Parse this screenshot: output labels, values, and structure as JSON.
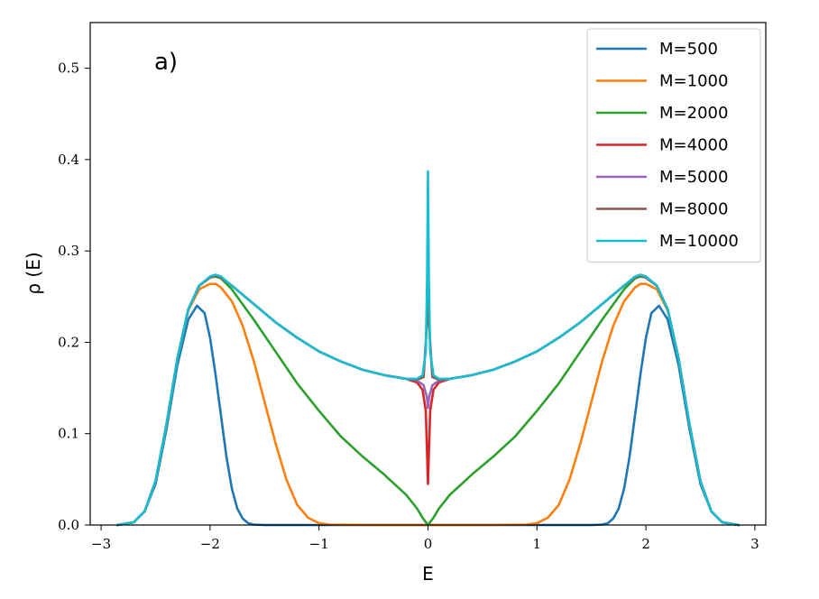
{
  "chart_data": {
    "type": "line",
    "title": "",
    "xlabel": "E",
    "ylabel": "ρ (E)",
    "annotation": "a)",
    "xlim": [
      -3.1,
      3.1
    ],
    "ylim": [
      0.0,
      0.55
    ],
    "xticks": [
      -3,
      -2,
      -1,
      0,
      1,
      2,
      3
    ],
    "xtick_labels": [
      "−3",
      "−2",
      "−1",
      "0",
      "1",
      "2",
      "3"
    ],
    "yticks": [
      0.0,
      0.1,
      0.2,
      0.3,
      0.4,
      0.5
    ],
    "ytick_labels": [
      "0.0",
      "0.1",
      "0.2",
      "0.3",
      "0.4",
      "0.5"
    ],
    "grid": false,
    "legend_position": "top-right",
    "series": [
      {
        "name": "M=500",
        "color": "#1f77b4",
        "x": [
          -2.85,
          -2.7,
          -2.6,
          -2.5,
          -2.4,
          -2.3,
          -2.2,
          -2.12,
          -2.05,
          -2.0,
          -1.95,
          -1.9,
          -1.85,
          -1.8,
          -1.75,
          -1.7,
          -1.65,
          -1.6,
          -1.5,
          -1.0,
          0.0,
          1.0,
          1.5,
          1.6,
          1.65,
          1.7,
          1.75,
          1.8,
          1.85,
          1.9,
          1.95,
          2.0,
          2.05,
          2.12,
          2.2,
          2.3,
          2.4,
          2.5,
          2.6,
          2.7,
          2.85
        ],
        "y": [
          0.0,
          0.003,
          0.015,
          0.045,
          0.105,
          0.175,
          0.225,
          0.24,
          0.232,
          0.205,
          0.165,
          0.12,
          0.075,
          0.04,
          0.018,
          0.007,
          0.002,
          0.0005,
          0.0,
          0.0,
          0.0,
          0.0,
          0.0,
          0.0005,
          0.002,
          0.007,
          0.018,
          0.04,
          0.075,
          0.12,
          0.165,
          0.205,
          0.232,
          0.24,
          0.225,
          0.175,
          0.105,
          0.045,
          0.015,
          0.003,
          0.0
        ]
      },
      {
        "name": "M=1000",
        "color": "#ff7f0e",
        "x": [
          -2.85,
          -2.7,
          -2.6,
          -2.5,
          -2.4,
          -2.3,
          -2.2,
          -2.1,
          -2.0,
          -1.95,
          -1.9,
          -1.8,
          -1.7,
          -1.6,
          -1.5,
          -1.4,
          -1.3,
          -1.2,
          -1.1,
          -1.0,
          -0.9,
          -0.5,
          0.0,
          0.5,
          0.9,
          1.0,
          1.1,
          1.2,
          1.3,
          1.4,
          1.5,
          1.6,
          1.7,
          1.8,
          1.9,
          1.95,
          2.0,
          2.1,
          2.2,
          2.3,
          2.4,
          2.5,
          2.6,
          2.7,
          2.85
        ],
        "y": [
          0.0,
          0.003,
          0.015,
          0.048,
          0.11,
          0.182,
          0.235,
          0.258,
          0.264,
          0.264,
          0.26,
          0.245,
          0.218,
          0.18,
          0.135,
          0.09,
          0.05,
          0.022,
          0.008,
          0.002,
          0.0005,
          0.0,
          0.0,
          0.0,
          0.0005,
          0.002,
          0.008,
          0.022,
          0.05,
          0.09,
          0.135,
          0.18,
          0.218,
          0.245,
          0.26,
          0.264,
          0.264,
          0.258,
          0.235,
          0.182,
          0.11,
          0.048,
          0.015,
          0.003,
          0.0
        ]
      },
      {
        "name": "M=2000",
        "color": "#2ca02c",
        "x": [
          -2.85,
          -2.7,
          -2.6,
          -2.5,
          -2.4,
          -2.3,
          -2.2,
          -2.1,
          -2.0,
          -1.95,
          -1.9,
          -1.8,
          -1.6,
          -1.4,
          -1.2,
          -1.0,
          -0.8,
          -0.6,
          -0.4,
          -0.2,
          -0.1,
          -0.05,
          0.0,
          0.05,
          0.1,
          0.2,
          0.4,
          0.6,
          0.8,
          1.0,
          1.2,
          1.4,
          1.6,
          1.8,
          1.9,
          1.95,
          2.0,
          2.1,
          2.2,
          2.3,
          2.4,
          2.5,
          2.6,
          2.7,
          2.85
        ],
        "y": [
          0.0,
          0.003,
          0.015,
          0.048,
          0.11,
          0.182,
          0.236,
          0.262,
          0.271,
          0.272,
          0.27,
          0.258,
          0.225,
          0.19,
          0.155,
          0.125,
          0.097,
          0.075,
          0.055,
          0.033,
          0.018,
          0.008,
          0.0,
          0.008,
          0.018,
          0.033,
          0.055,
          0.075,
          0.097,
          0.125,
          0.155,
          0.19,
          0.225,
          0.258,
          0.27,
          0.272,
          0.271,
          0.262,
          0.236,
          0.182,
          0.11,
          0.048,
          0.015,
          0.003,
          0.0
        ]
      },
      {
        "name": "M=4000",
        "color": "#d62728",
        "x": [
          -2.85,
          -2.7,
          -2.6,
          -2.5,
          -2.4,
          -2.3,
          -2.2,
          -2.1,
          -2.0,
          -1.95,
          -1.9,
          -1.8,
          -1.6,
          -1.4,
          -1.2,
          -1.0,
          -0.8,
          -0.6,
          -0.4,
          -0.2,
          -0.1,
          -0.05,
          -0.02,
          0.0,
          0.02,
          0.05,
          0.1,
          0.2,
          0.4,
          0.6,
          0.8,
          1.0,
          1.2,
          1.4,
          1.6,
          1.8,
          1.9,
          1.95,
          2.0,
          2.1,
          2.2,
          2.3,
          2.4,
          2.5,
          2.6,
          2.7,
          2.85
        ],
        "y": [
          0.0,
          0.003,
          0.015,
          0.048,
          0.11,
          0.182,
          0.236,
          0.262,
          0.271,
          0.273,
          0.271,
          0.262,
          0.242,
          0.222,
          0.205,
          0.19,
          0.179,
          0.17,
          0.164,
          0.16,
          0.156,
          0.148,
          0.125,
          0.045,
          0.125,
          0.148,
          0.156,
          0.16,
          0.164,
          0.17,
          0.179,
          0.19,
          0.205,
          0.222,
          0.242,
          0.262,
          0.271,
          0.273,
          0.271,
          0.262,
          0.236,
          0.182,
          0.11,
          0.048,
          0.015,
          0.003,
          0.0
        ]
      },
      {
        "name": "M=5000",
        "color": "#9467bd",
        "x": [
          -2.85,
          -2.7,
          -2.6,
          -2.5,
          -2.4,
          -2.3,
          -2.2,
          -2.1,
          -2.0,
          -1.95,
          -1.9,
          -1.8,
          -1.6,
          -1.4,
          -1.2,
          -1.0,
          -0.8,
          -0.6,
          -0.4,
          -0.2,
          -0.1,
          -0.04,
          -0.01,
          0.0,
          0.01,
          0.04,
          0.1,
          0.2,
          0.4,
          0.6,
          0.8,
          1.0,
          1.2,
          1.4,
          1.6,
          1.8,
          1.9,
          1.95,
          2.0,
          2.1,
          2.2,
          2.3,
          2.4,
          2.5,
          2.6,
          2.7,
          2.85
        ],
        "y": [
          0.0,
          0.003,
          0.015,
          0.048,
          0.11,
          0.182,
          0.236,
          0.262,
          0.271,
          0.273,
          0.271,
          0.262,
          0.242,
          0.222,
          0.205,
          0.19,
          0.179,
          0.17,
          0.164,
          0.16,
          0.158,
          0.153,
          0.14,
          0.128,
          0.14,
          0.153,
          0.158,
          0.16,
          0.164,
          0.17,
          0.179,
          0.19,
          0.205,
          0.222,
          0.242,
          0.262,
          0.271,
          0.273,
          0.271,
          0.262,
          0.236,
          0.182,
          0.11,
          0.048,
          0.015,
          0.003,
          0.0
        ]
      },
      {
        "name": "M=8000",
        "color": "#8c564b",
        "x": [
          -2.85,
          -2.7,
          -2.6,
          -2.5,
          -2.4,
          -2.3,
          -2.2,
          -2.1,
          -2.0,
          -1.95,
          -1.9,
          -1.8,
          -1.6,
          -1.4,
          -1.2,
          -1.0,
          -0.8,
          -0.6,
          -0.4,
          -0.2,
          -0.1,
          -0.04,
          -0.01,
          0.0,
          0.01,
          0.04,
          0.1,
          0.2,
          0.4,
          0.6,
          0.8,
          1.0,
          1.2,
          1.4,
          1.6,
          1.8,
          1.9,
          1.95,
          2.0,
          2.1,
          2.2,
          2.3,
          2.4,
          2.5,
          2.6,
          2.7,
          2.85
        ],
        "y": [
          0.0,
          0.003,
          0.015,
          0.048,
          0.11,
          0.182,
          0.236,
          0.262,
          0.271,
          0.273,
          0.271,
          0.262,
          0.242,
          0.222,
          0.205,
          0.19,
          0.179,
          0.17,
          0.164,
          0.16,
          0.159,
          0.162,
          0.22,
          0.3,
          0.22,
          0.162,
          0.159,
          0.16,
          0.164,
          0.17,
          0.179,
          0.19,
          0.205,
          0.222,
          0.242,
          0.262,
          0.271,
          0.273,
          0.271,
          0.262,
          0.236,
          0.182,
          0.11,
          0.048,
          0.015,
          0.003,
          0.0
        ]
      },
      {
        "name": "M=10000",
        "color": "#17becf",
        "x": [
          -2.85,
          -2.7,
          -2.6,
          -2.5,
          -2.4,
          -2.3,
          -2.2,
          -2.1,
          -2.0,
          -1.95,
          -1.9,
          -1.8,
          -1.6,
          -1.4,
          -1.2,
          -1.0,
          -0.8,
          -0.6,
          -0.4,
          -0.2,
          -0.1,
          -0.05,
          -0.02,
          -0.008,
          0.0,
          0.008,
          0.02,
          0.05,
          0.1,
          0.2,
          0.4,
          0.6,
          0.8,
          1.0,
          1.2,
          1.4,
          1.6,
          1.8,
          1.9,
          1.95,
          2.0,
          2.1,
          2.2,
          2.3,
          2.4,
          2.5,
          2.6,
          2.7,
          2.85
        ],
        "y": [
          0.0,
          0.003,
          0.015,
          0.048,
          0.11,
          0.182,
          0.236,
          0.262,
          0.272,
          0.274,
          0.272,
          0.262,
          0.242,
          0.222,
          0.205,
          0.19,
          0.179,
          0.17,
          0.164,
          0.16,
          0.16,
          0.164,
          0.19,
          0.27,
          0.387,
          0.27,
          0.19,
          0.164,
          0.16,
          0.16,
          0.164,
          0.17,
          0.179,
          0.19,
          0.205,
          0.222,
          0.242,
          0.262,
          0.272,
          0.274,
          0.272,
          0.262,
          0.236,
          0.182,
          0.11,
          0.048,
          0.015,
          0.003,
          0.0
        ]
      }
    ]
  }
}
